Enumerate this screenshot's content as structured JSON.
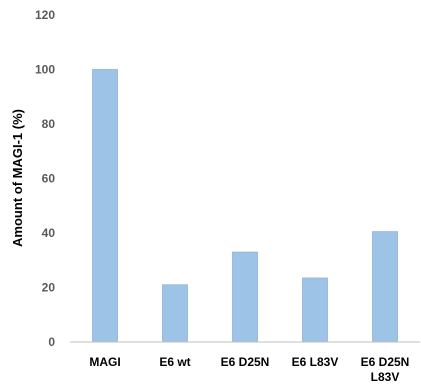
{
  "chart_data": {
    "type": "bar",
    "categories": [
      [
        "MAGI"
      ],
      [
        "E6 wt"
      ],
      [
        "E6 D25N"
      ],
      [
        "E6 L83V"
      ],
      [
        "E6 D25N",
        "L83V"
      ]
    ],
    "values": [
      100,
      21,
      33,
      23.5,
      40.5
    ],
    "ylabel": "Amount of MAGI-1 (%)",
    "xlabel": "",
    "title": "",
    "ylim": [
      0,
      120
    ],
    "yticks": [
      0,
      20,
      40,
      60,
      80,
      100,
      120
    ],
    "grid": false,
    "legend": "none",
    "bar_color": "#9DC3E6",
    "bar_edge_color": "#8FB4D8",
    "axis_color": "#BFBFBF"
  }
}
